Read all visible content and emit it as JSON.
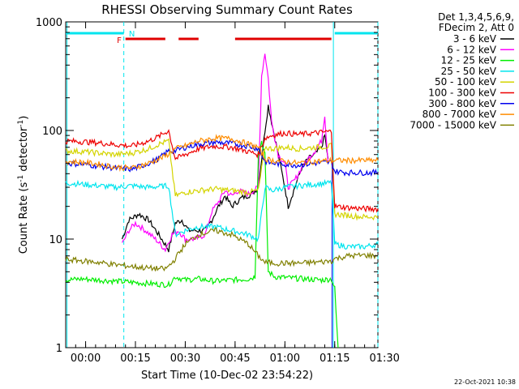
{
  "chart_data": {
    "type": "line",
    "title": "RHESSI Observing Summary Count Rates",
    "xlabel": "Start Time (10-Dec-02 23:54:22)",
    "ylabel_main": "Count Rate (s",
    "ylabel_sup1": "-1",
    "ylabel_mid": " detector",
    "ylabel_sup2": "-1",
    "ylabel_end": ")",
    "yscale": "log",
    "xlim_min": [
      0,
      94
    ],
    "ylim": [
      1,
      1000
    ],
    "x_ticks": [
      {
        "min": 6,
        "label": "00:00"
      },
      {
        "min": 21,
        "label": "00:15"
      },
      {
        "min": 36,
        "label": "00:30"
      },
      {
        "min": 51,
        "label": "00:45"
      },
      {
        "min": 66,
        "label": "01:00"
      },
      {
        "min": 81,
        "label": "01:15"
      },
      {
        "min": 96,
        "label": "01:30"
      }
    ],
    "y_ticks": [
      {
        "value": 1,
        "label": "1"
      },
      {
        "value": 10,
        "label": "10"
      },
      {
        "value": 100,
        "label": "100"
      },
      {
        "value": 1000,
        "label": "1000"
      }
    ],
    "legend_header": [
      "Det 1,3,4,5,6,9,",
      "FDecim 2, Att 0"
    ],
    "flags": {
      "N_label": "N",
      "F_label": "F",
      "N_color": "#00e5ee",
      "F_color": "#e00000"
    },
    "series": [
      {
        "name": "3 - 6 keV",
        "color": "#000000",
        "points": [
          [
            17,
            10
          ],
          [
            19,
            15
          ],
          [
            22,
            17
          ],
          [
            25,
            15
          ],
          [
            28,
            11
          ],
          [
            31,
            8
          ],
          [
            33,
            14
          ],
          [
            35,
            15
          ],
          [
            37,
            12
          ],
          [
            39,
            12
          ],
          [
            42,
            12
          ],
          [
            44,
            15
          ],
          [
            46,
            20
          ],
          [
            48,
            25
          ],
          [
            50,
            20
          ],
          [
            53,
            24
          ],
          [
            56,
            26
          ],
          [
            58,
            30
          ],
          [
            60,
            100
          ],
          [
            61,
            170
          ],
          [
            62,
            120
          ],
          [
            64,
            60
          ],
          [
            66,
            30
          ],
          [
            67,
            20
          ],
          [
            69,
            30
          ],
          [
            71,
            45
          ],
          [
            73,
            55
          ],
          [
            75,
            60
          ],
          [
            77,
            70
          ],
          [
            78,
            90
          ],
          [
            79,
            55
          ]
        ]
      },
      {
        "name": "6 - 12 keV",
        "color": "#ff00ff",
        "points": [
          [
            17,
            9
          ],
          [
            19,
            12
          ],
          [
            21,
            14
          ],
          [
            24,
            12
          ],
          [
            27,
            10
          ],
          [
            30,
            8
          ],
          [
            32,
            11
          ],
          [
            34,
            12
          ],
          [
            36,
            10
          ],
          [
            39,
            10
          ],
          [
            42,
            11
          ],
          [
            44,
            18
          ],
          [
            46,
            22
          ],
          [
            48,
            28
          ],
          [
            50,
            25
          ],
          [
            52,
            28
          ],
          [
            55,
            26
          ],
          [
            58,
            30
          ],
          [
            59,
            320
          ],
          [
            60,
            520
          ],
          [
            61,
            300
          ],
          [
            62,
            120
          ],
          [
            64,
            60
          ],
          [
            66,
            50
          ],
          [
            67,
            30
          ],
          [
            69,
            35
          ],
          [
            71,
            45
          ],
          [
            73,
            55
          ],
          [
            75,
            65
          ],
          [
            77,
            80
          ],
          [
            78,
            140
          ],
          [
            79,
            50
          ]
        ]
      },
      {
        "name": "12 - 25 keV",
        "color": "#00ee00",
        "points": [
          [
            0,
            4.2
          ],
          [
            5,
            4.3
          ],
          [
            10,
            4.2
          ],
          [
            15,
            4.1
          ],
          [
            20,
            4.0
          ],
          [
            25,
            3.9
          ],
          [
            31,
            3.8
          ],
          [
            33,
            4.5
          ],
          [
            36,
            4.2
          ],
          [
            40,
            4.3
          ],
          [
            45,
            4.1
          ],
          [
            50,
            4.2
          ],
          [
            55,
            4.3
          ],
          [
            57,
            4.5
          ],
          [
            58,
            60
          ],
          [
            59,
            80
          ],
          [
            60,
            60
          ],
          [
            61,
            5
          ],
          [
            63,
            4.5
          ],
          [
            67,
            4.4
          ],
          [
            72,
            4.3
          ],
          [
            77,
            4.2
          ],
          [
            80,
            4.3
          ],
          [
            81,
            3.5
          ],
          [
            82,
            1
          ]
        ]
      },
      {
        "name": "25 - 50 keV",
        "color": "#00e5ee",
        "points": [
          [
            0,
            33
          ],
          [
            5,
            32
          ],
          [
            10,
            31
          ],
          [
            15,
            30
          ],
          [
            20,
            31
          ],
          [
            25,
            30
          ],
          [
            31,
            31
          ],
          [
            33,
            11
          ],
          [
            36,
            12
          ],
          [
            40,
            13
          ],
          [
            45,
            13
          ],
          [
            50,
            12
          ],
          [
            55,
            11
          ],
          [
            58,
            10
          ],
          [
            60,
            30
          ],
          [
            62,
            28
          ],
          [
            66,
            30
          ],
          [
            70,
            31
          ],
          [
            75,
            32
          ],
          [
            80,
            33
          ],
          [
            81,
            9
          ],
          [
            85,
            8.5
          ],
          [
            90,
            8.5
          ],
          [
            94,
            9
          ]
        ]
      },
      {
        "name": "50 - 100 keV",
        "color": "#d4d400",
        "points": [
          [
            0,
            65
          ],
          [
            5,
            64
          ],
          [
            10,
            62
          ],
          [
            15,
            60
          ],
          [
            20,
            62
          ],
          [
            25,
            68
          ],
          [
            28,
            75
          ],
          [
            31,
            80
          ],
          [
            33,
            25
          ],
          [
            36,
            27
          ],
          [
            40,
            28
          ],
          [
            45,
            29
          ],
          [
            50,
            28
          ],
          [
            55,
            27
          ],
          [
            58,
            28
          ],
          [
            60,
            70
          ],
          [
            62,
            68
          ],
          [
            66,
            70
          ],
          [
            70,
            68
          ],
          [
            75,
            70
          ],
          [
            80,
            72
          ],
          [
            81,
            17
          ],
          [
            85,
            16.5
          ],
          [
            90,
            16
          ],
          [
            94,
            16
          ]
        ]
      },
      {
        "name": "100 - 300 keV",
        "color": "#ee0000",
        "points": [
          [
            0,
            80
          ],
          [
            5,
            79
          ],
          [
            10,
            77
          ],
          [
            15,
            74
          ],
          [
            20,
            72
          ],
          [
            25,
            80
          ],
          [
            28,
            88
          ],
          [
            31,
            100
          ],
          [
            33,
            55
          ],
          [
            36,
            60
          ],
          [
            40,
            68
          ],
          [
            45,
            72
          ],
          [
            50,
            70
          ],
          [
            55,
            64
          ],
          [
            58,
            60
          ],
          [
            60,
            85
          ],
          [
            62,
            90
          ],
          [
            66,
            95
          ],
          [
            70,
            92
          ],
          [
            75,
            95
          ],
          [
            80,
            98
          ],
          [
            81,
            20
          ],
          [
            85,
            19.5
          ],
          [
            90,
            19
          ],
          [
            94,
            19
          ]
        ]
      },
      {
        "name": "300 - 800 keV",
        "color": "#0000ee",
        "points": [
          [
            0,
            50
          ],
          [
            5,
            49
          ],
          [
            10,
            47
          ],
          [
            15,
            45
          ],
          [
            20,
            44
          ],
          [
            25,
            50
          ],
          [
            28,
            55
          ],
          [
            31,
            65
          ],
          [
            33,
            65
          ],
          [
            36,
            70
          ],
          [
            40,
            75
          ],
          [
            45,
            78
          ],
          [
            50,
            76
          ],
          [
            55,
            72
          ],
          [
            58,
            68
          ],
          [
            60,
            52
          ],
          [
            62,
            50
          ],
          [
            66,
            49
          ],
          [
            70,
            48
          ],
          [
            75,
            50
          ],
          [
            80,
            51
          ],
          [
            81,
            42
          ],
          [
            85,
            41
          ],
          [
            90,
            41
          ],
          [
            94,
            41
          ]
        ]
      },
      {
        "name": "800 - 7000 keV",
        "color": "#ff8c00",
        "points": [
          [
            0,
            52
          ],
          [
            5,
            51
          ],
          [
            10,
            49
          ],
          [
            15,
            46
          ],
          [
            20,
            45
          ],
          [
            25,
            50
          ],
          [
            30,
            58
          ],
          [
            33,
            68
          ],
          [
            36,
            72
          ],
          [
            40,
            80
          ],
          [
            45,
            85
          ],
          [
            50,
            84
          ],
          [
            55,
            75
          ],
          [
            58,
            70
          ],
          [
            60,
            55
          ],
          [
            62,
            53
          ],
          [
            66,
            52
          ],
          [
            70,
            50
          ],
          [
            75,
            52
          ],
          [
            80,
            53
          ],
          [
            85,
            53
          ],
          [
            90,
            53
          ],
          [
            94,
            53
          ]
        ]
      },
      {
        "name": "7000 - 15000 keV",
        "color": "#808000",
        "points": [
          [
            0,
            6.5
          ],
          [
            5,
            6.3
          ],
          [
            10,
            6.1
          ],
          [
            15,
            5.8
          ],
          [
            20,
            5.6
          ],
          [
            25,
            5.4
          ],
          [
            30,
            5.3
          ],
          [
            32,
            6
          ],
          [
            36,
            9
          ],
          [
            40,
            11
          ],
          [
            45,
            12
          ],
          [
            50,
            11
          ],
          [
            55,
            9
          ],
          [
            58,
            7
          ],
          [
            60,
            6.1
          ],
          [
            64,
            6.0
          ],
          [
            70,
            6.0
          ],
          [
            75,
            6.1
          ],
          [
            78,
            6.2
          ],
          [
            80,
            6.3
          ],
          [
            81,
            6.6
          ],
          [
            85,
            7.0
          ],
          [
            90,
            7.1
          ],
          [
            94,
            7.0
          ]
        ]
      }
    ],
    "footer_date": "22-Oct-2021 10:38"
  }
}
